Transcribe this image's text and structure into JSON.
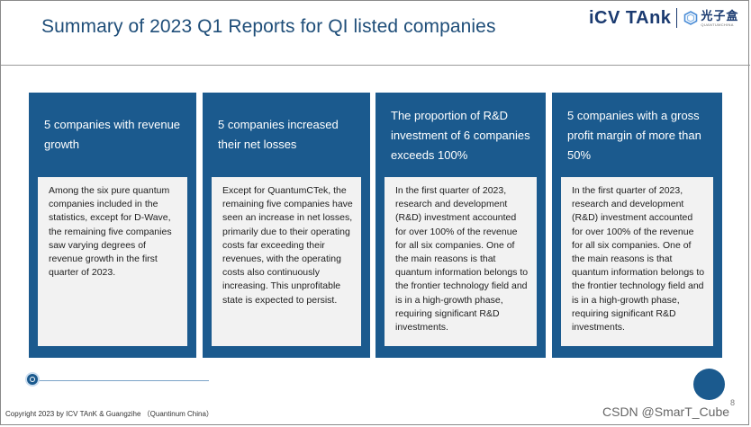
{
  "title": "Summary of 2023 Q1 Reports for QI listed companies",
  "logo": {
    "icv": "iCV TAnk",
    "chinese": "光子盒",
    "sub": "QUANTUMCHINA",
    "accent_color": "#1a3a70"
  },
  "colors": {
    "card_blue": "#1b5a8e",
    "card_body": "#f2f2f2"
  },
  "cards": [
    {
      "heading": "5 companies with revenue growth",
      "body": "Among the six pure quantum companies included in the statistics, except for D-Wave, the remaining five companies saw varying degrees of revenue growth in the first quarter of 2023."
    },
    {
      "heading": "5 companies increased their net losses",
      "body": "Except for QuantumCTek, the remaining five companies have seen an increase in net losses, primarily due to their operating costs far exceeding their revenues, with the operating costs also continuously increasing. This unprofitable state is expected to persist."
    },
    {
      "heading": "The proportion of R&D investment of 6 companies exceeds 100%",
      "body": "In the first quarter of 2023, research and development (R&D) investment accounted for over 100% of the revenue for all six companies. One of the main reasons is that quantum information belongs to the frontier technology field and is in a high-growth phase, requiring significant R&D investments."
    },
    {
      "heading": "5 companies with a gross profit margin of more than 50%",
      "body": "In the first quarter of 2023, research and development (R&D) investment accounted for over 100% of the revenue for all six companies. One of the main reasons is that quantum information belongs to the frontier technology field and is in a high-growth phase, requiring significant R&D investments."
    }
  ],
  "footer": {
    "copyright": "Copyright 2023 by ICV TAnK & Guangzihe （Quantinum China）",
    "page_number": "8",
    "watermark": "CSDN @SmarT_Cube"
  }
}
